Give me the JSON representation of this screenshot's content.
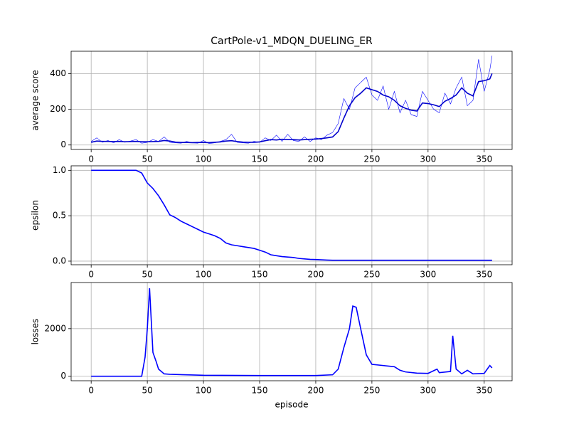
{
  "chart_data": [
    {
      "type": "line",
      "title": "CartPole-v1_MDQN_DUELING_ER",
      "y_label": "average score",
      "xlim": [
        -17.85,
        374.85
      ],
      "xticks": [
        0,
        50,
        100,
        150,
        200,
        250,
        300,
        350
      ],
      "ylim": [
        -25,
        525
      ],
      "yticks": [
        0,
        200,
        400
      ],
      "grid": true,
      "x": [
        0,
        5,
        10,
        15,
        20,
        25,
        30,
        35,
        40,
        45,
        50,
        55,
        60,
        65,
        70,
        75,
        80,
        85,
        90,
        95,
        100,
        105,
        110,
        115,
        120,
        125,
        130,
        135,
        140,
        145,
        150,
        155,
        160,
        165,
        170,
        175,
        180,
        185,
        190,
        195,
        200,
        205,
        210,
        215,
        220,
        225,
        230,
        235,
        240,
        245,
        250,
        255,
        260,
        265,
        270,
        275,
        280,
        285,
        290,
        295,
        300,
        305,
        310,
        315,
        320,
        325,
        330,
        335,
        340,
        345,
        350,
        355,
        357
      ],
      "series": [
        {
          "color": "#0000ff",
          "line_width": 0.6,
          "values": [
            20,
            40,
            15,
            25,
            12,
            30,
            15,
            22,
            30,
            10,
            15,
            30,
            20,
            45,
            15,
            12,
            10,
            20,
            12,
            10,
            25,
            8,
            12,
            20,
            30,
            60,
            15,
            12,
            10,
            20,
            15,
            40,
            25,
            55,
            20,
            60,
            25,
            20,
            45,
            20,
            40,
            30,
            55,
            70,
            120,
            260,
            200,
            320,
            350,
            380,
            280,
            250,
            330,
            200,
            300,
            180,
            250,
            170,
            160,
            300,
            250,
            200,
            180,
            290,
            230,
            320,
            380,
            220,
            250,
            480,
            300,
            420,
            500
          ]
        },
        {
          "color": "#0000cd",
          "line_width": 1.6,
          "values": [
            15,
            22,
            20,
            20,
            19,
            20,
            18,
            19,
            20,
            18,
            18,
            19,
            20,
            25,
            22,
            16,
            14,
            14,
            13,
            14,
            14,
            13,
            15,
            17,
            22,
            24,
            19,
            16,
            15,
            15,
            17,
            24,
            30,
            28,
            32,
            30,
            30,
            28,
            30,
            32,
            33,
            36,
            40,
            45,
            75,
            150,
            220,
            265,
            290,
            320,
            310,
            300,
            280,
            270,
            250,
            220,
            205,
            195,
            190,
            235,
            232,
            225,
            215,
            245,
            260,
            280,
            320,
            290,
            275,
            355,
            360,
            370,
            400
          ]
        }
      ]
    },
    {
      "type": "line",
      "y_label": "epsilon",
      "xlim": [
        -17.85,
        374.85
      ],
      "xticks": [
        0,
        50,
        100,
        150,
        200,
        250,
        300,
        350
      ],
      "ylim": [
        -0.0395,
        1.0495
      ],
      "yticks": [
        {
          "value": 0,
          "label": "0.0"
        },
        {
          "value": 0.5,
          "label": "0.5"
        },
        {
          "value": 1,
          "label": "1.0"
        }
      ],
      "grid": true,
      "x": [
        0,
        5,
        10,
        15,
        20,
        25,
        30,
        35,
        40,
        45,
        50,
        55,
        60,
        65,
        70,
        75,
        80,
        85,
        90,
        95,
        100,
        105,
        110,
        115,
        120,
        125,
        130,
        135,
        140,
        145,
        150,
        155,
        160,
        165,
        170,
        175,
        180,
        185,
        190,
        195,
        200,
        205,
        210,
        215,
        220,
        225,
        230,
        235,
        240,
        245,
        250,
        255,
        260,
        265,
        270,
        275,
        280,
        285,
        290,
        295,
        300,
        305,
        310,
        315,
        320,
        325,
        330,
        335,
        340,
        345,
        350,
        355,
        357
      ],
      "series": [
        {
          "color": "#0000ff",
          "line_width": 1.6,
          "values": [
            1,
            1,
            1,
            1,
            1,
            1,
            1,
            1,
            1,
            0.97,
            0.86,
            0.8,
            0.72,
            0.62,
            0.51,
            0.48,
            0.44,
            0.41,
            0.38,
            0.35,
            0.32,
            0.3,
            0.28,
            0.25,
            0.2,
            0.18,
            0.17,
            0.16,
            0.15,
            0.14,
            0.12,
            0.1,
            0.07,
            0.06,
            0.05,
            0.045,
            0.04,
            0.03,
            0.025,
            0.02,
            0.018,
            0.015,
            0.012,
            0.01,
            0.01,
            0.01,
            0.01,
            0.01,
            0.01,
            0.01,
            0.01,
            0.01,
            0.01,
            0.01,
            0.01,
            0.01,
            0.01,
            0.01,
            0.01,
            0.01,
            0.01,
            0.01,
            0.01,
            0.01,
            0.01,
            0.01,
            0.01,
            0.01,
            0.01,
            0.01,
            0.01,
            0.01,
            0.01
          ]
        }
      ]
    },
    {
      "type": "line",
      "y_label": "losses",
      "x_label": "episode",
      "xlim": [
        -17.85,
        374.85
      ],
      "xticks": [
        0,
        50,
        100,
        150,
        200,
        250,
        300,
        350
      ],
      "ylim": [
        -190,
        3940
      ],
      "yticks": [
        0,
        2000
      ],
      "grid": true,
      "x": [
        0,
        20,
        40,
        45,
        48,
        50,
        52,
        55,
        58,
        60,
        65,
        70,
        100,
        150,
        200,
        215,
        220,
        225,
        230,
        233,
        236,
        240,
        245,
        250,
        260,
        270,
        275,
        280,
        290,
        300,
        308,
        310,
        320,
        322,
        325,
        330,
        335,
        340,
        350,
        355,
        357
      ],
      "series": [
        {
          "color": "#0000ff",
          "line_width": 1.6,
          "values": [
            0,
            0,
            0,
            0,
            800,
            2000,
            3700,
            1000,
            600,
            300,
            100,
            80,
            40,
            30,
            30,
            60,
            300,
            1200,
            2000,
            2950,
            2900,
            2000,
            900,
            500,
            450,
            400,
            250,
            180,
            130,
            120,
            300,
            150,
            200,
            1700,
            300,
            100,
            250,
            100,
            120,
            450,
            350
          ]
        }
      ]
    }
  ]
}
